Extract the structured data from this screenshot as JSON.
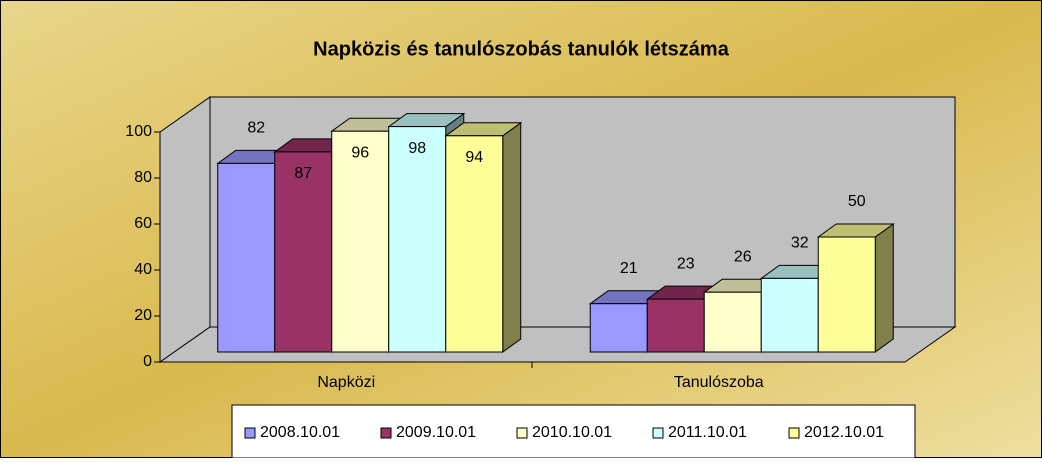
{
  "chart_data": {
    "type": "bar3d",
    "title": "Napközis és tanulószobás tanulók létszáma",
    "categories": [
      "Napközi",
      "Tanulószoba"
    ],
    "series": [
      {
        "name": "2008.10.01",
        "color": "#9999ff",
        "values": [
          82,
          21
        ]
      },
      {
        "name": "2009.10.01",
        "color": "#993366",
        "values": [
          87,
          23
        ]
      },
      {
        "name": "2010.10.01",
        "color": "#ffffcc",
        "values": [
          96,
          26
        ]
      },
      {
        "name": "2011.10.01",
        "color": "#ccffff",
        "values": [
          98,
          32
        ]
      },
      {
        "name": "2012.10.01",
        "color": "#ffff99",
        "values": [
          94,
          50
        ]
      }
    ],
    "ylim": [
      0,
      100
    ],
    "yticks": [
      0,
      20,
      40,
      60,
      80,
      100
    ],
    "grid": false,
    "legend": "bottom"
  }
}
